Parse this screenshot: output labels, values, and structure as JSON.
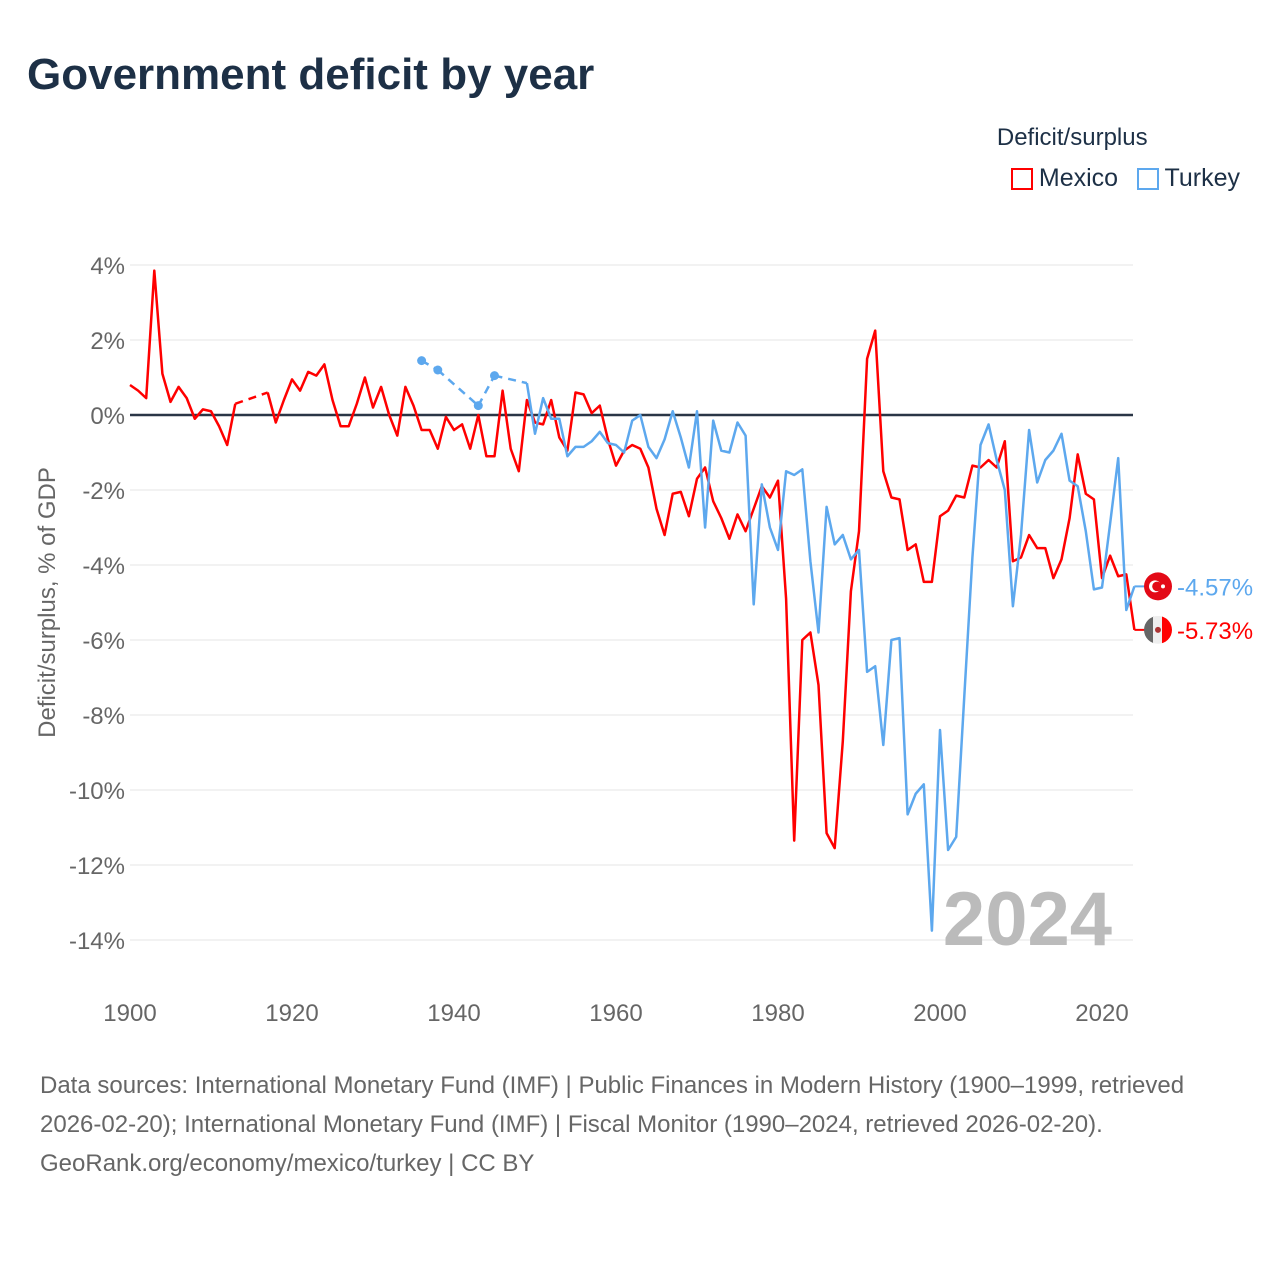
{
  "title": "Government deficit by year",
  "legend": {
    "title": "Deficit/surplus",
    "items": [
      {
        "name": "Mexico",
        "color": "#ff0000"
      },
      {
        "name": "Turkey",
        "color": "#5da8ee"
      }
    ]
  },
  "footer": {
    "sources": "Data sources: International Monetary Fund (IMF) | Public Finances in Modern History (1900–1999, retrieved 2026-02-20); International Monetary Fund (IMF) | Fiscal Monitor (1990–2024, retrieved 2026-02-20).",
    "credit": "GeoRank.org/economy/mexico/turkey | CC BY"
  },
  "chart_data": {
    "type": "line",
    "title": "Government deficit by year",
    "ylabel": "Deficit/surplus, % of GDP",
    "xlabel": "",
    "xlim": [
      1900,
      2024
    ],
    "ylim": [
      -14,
      4
    ],
    "x_ticks": [
      1900,
      1920,
      1940,
      1960,
      1980,
      2000,
      2020
    ],
    "y_ticks": [
      4,
      2,
      0,
      -2,
      -4,
      -6,
      -8,
      -10,
      -12,
      -14
    ],
    "y_tick_labels": [
      "4%",
      "2%",
      "0%",
      "-2%",
      "-4%",
      "-6%",
      "-8%",
      "-10%",
      "-12%",
      "-14%"
    ],
    "grid": true,
    "legend_position": "top-right",
    "year_label": "2024",
    "series": [
      {
        "name": "Mexico",
        "color": "#ff0000",
        "end_label": "-5.73%",
        "start_year": 1900,
        "values": [
          0.8,
          0.65,
          0.45,
          3.85,
          1.1,
          0.35,
          0.75,
          0.45,
          -0.1,
          0.15,
          0.1,
          -0.3,
          -0.8,
          0.3,
          null,
          null,
          null,
          0.6,
          -0.2,
          0.4,
          0.95,
          0.65,
          1.15,
          1.05,
          1.35,
          0.4,
          -0.3,
          -0.3,
          0.3,
          1.0,
          0.2,
          0.75,
          0.0,
          -0.55,
          0.75,
          0.25,
          -0.4,
          -0.4,
          -0.9,
          -0.05,
          -0.4,
          -0.25,
          -0.9,
          0.0,
          -1.1,
          -1.1,
          0.65,
          -0.9,
          -1.5,
          0.4,
          -0.2,
          -0.25,
          0.4,
          -0.6,
          -0.95,
          0.6,
          0.55,
          0.05,
          0.25,
          -0.65,
          -1.35,
          -0.95,
          -0.8,
          -0.9,
          -1.4,
          -2.5,
          -3.2,
          -2.1,
          -2.05,
          -2.7,
          -1.7,
          -1.4,
          -2.3,
          -2.75,
          -3.3,
          -2.65,
          -3.1,
          -2.5,
          -1.9,
          -2.2,
          -1.75,
          -4.9,
          -11.35,
          -6.0,
          -5.8,
          -7.2,
          -11.15,
          -11.55,
          -8.7,
          -4.7,
          -3.1,
          1.5,
          2.25,
          -1.5,
          -2.2,
          -2.25,
          -3.6,
          -3.45,
          -4.45,
          -4.45,
          -2.7,
          -2.55,
          -2.15,
          -2.2,
          -1.35,
          -1.4,
          -1.2,
          -1.4,
          -0.7,
          -3.9,
          -3.8,
          -3.2,
          -3.55,
          -3.55,
          -4.35,
          -3.85,
          -2.75,
          -1.05,
          -2.1,
          -2.25,
          -4.35,
          -3.75,
          -4.3,
          -4.25,
          -5.73
        ]
      },
      {
        "name": "Turkey",
        "color": "#5da8ee",
        "end_label": "-4.57%",
        "start_year": 1936,
        "values": [
          1.45,
          null,
          1.2,
          null,
          null,
          null,
          null,
          0.25,
          null,
          1.05,
          null,
          null,
          null,
          0.85,
          -0.5,
          0.45,
          -0.1,
          -0.1,
          -1.1,
          -0.85,
          -0.85,
          -0.7,
          -0.45,
          -0.75,
          -0.8,
          -1.0,
          -0.15,
          0.0,
          -0.85,
          -1.15,
          -0.65,
          0.1,
          -0.6,
          -1.4,
          0.1,
          -3.0,
          -0.15,
          -0.95,
          -1.0,
          -0.2,
          -0.55,
          -5.05,
          -1.85,
          -3.0,
          -3.6,
          -1.5,
          -1.6,
          -1.45,
          -3.9,
          -5.8,
          -2.45,
          -3.45,
          -3.2,
          -3.85,
          -3.6,
          -6.85,
          -6.7,
          -8.8,
          -6.0,
          -5.95,
          -10.65,
          -10.1,
          -9.85,
          -13.75,
          -8.4,
          -11.6,
          -11.25,
          -7.5,
          -3.8,
          -0.8,
          -0.25,
          -1.2,
          -2.0,
          -5.1,
          -3.2,
          -0.4,
          -1.8,
          -1.2,
          -0.95,
          -0.5,
          -1.75,
          -1.9,
          -3.1,
          -4.65,
          -4.6,
          -2.9,
          -1.15,
          -5.2,
          -4.57
        ]
      }
    ]
  }
}
